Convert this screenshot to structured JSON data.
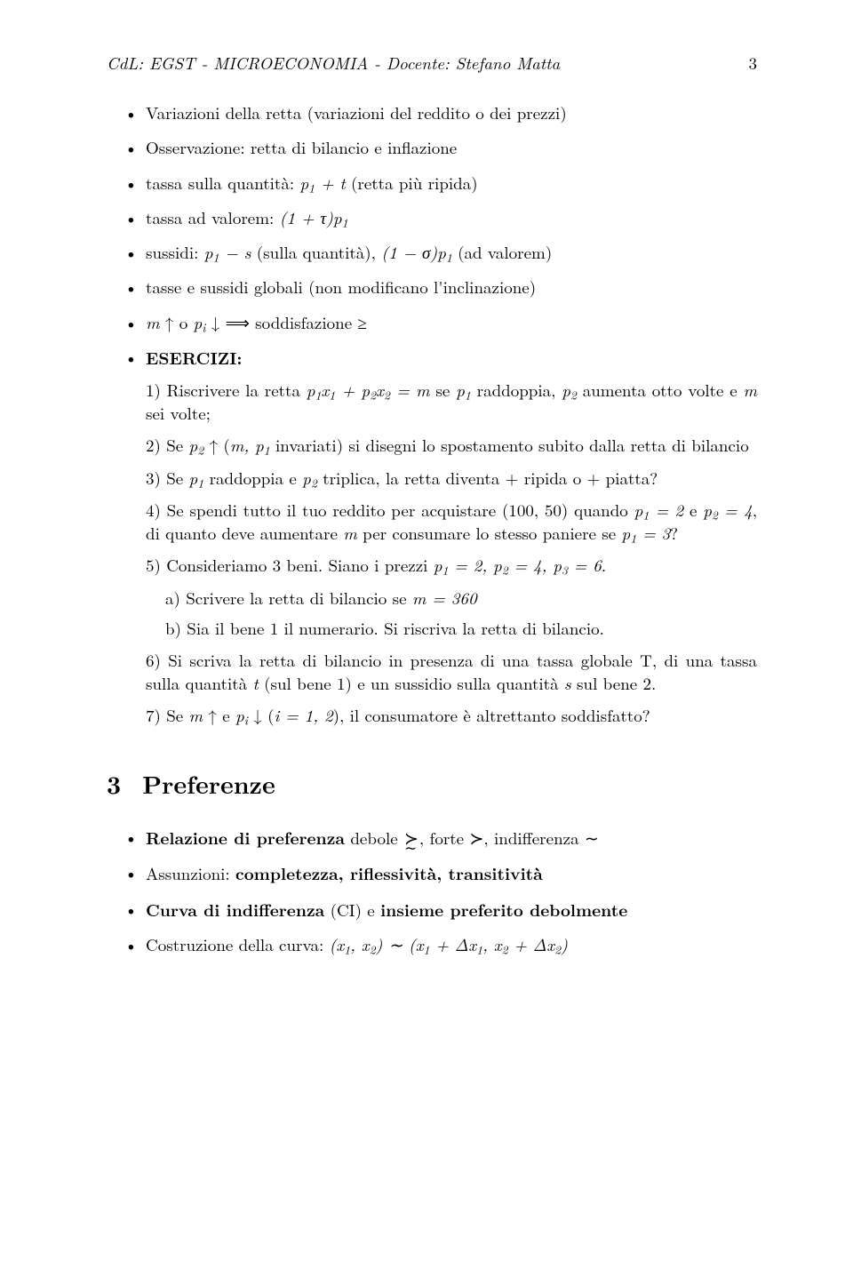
{
  "header": {
    "left": "CdL: EGST - MICROECONOMIA - Docente: Stefano Matta",
    "pagenum": "3"
  },
  "bullets": {
    "b1": "Variazioni della retta (variazioni del reddito o dei prezzi)",
    "b2": "Osservazione: retta di bilancio e inflazione",
    "b3_pre": "tassa sulla quantità: ",
    "b3_math": "p₁ + t",
    "b3_post": " (retta più ripida)",
    "b4_pre": "tassa ad valorem: ",
    "b4_math": "(1 + τ)p₁",
    "b5_pre": "sussidi: ",
    "b5_math1": "p₁ − s",
    "b5_mid": " (sulla quantità), ",
    "b5_math2": "(1 − σ)p₁",
    "b5_post": " (ad valorem)",
    "b6": "tasse e sussidi globali (non modificano l'inclinazione)",
    "b7_pre": "m ↑ o pᵢ ↓ ",
    "b7_arrow": "⟹",
    "b7_post": " soddisfazione ≥",
    "b8": "ESERCIZI:"
  },
  "ex": {
    "e1_a": "1) Riscrivere la retta ",
    "e1_m": "p₁x₁ + p₂x₂ = m",
    "e1_b": " se ",
    "e1_c": "p₁",
    "e1_d": " raddoppia, ",
    "e1_e": "p₂",
    "e1_f": " aumenta otto volte e ",
    "e1_g": "m",
    "e1_h": " sei volte;",
    "e2_a": "2) Se ",
    "e2_b": "p₂ ↑",
    "e2_c": " (",
    "e2_d": "m, p₁",
    "e2_e": " invariati) si disegni lo spostamento subito dalla retta di bilancio",
    "e3_a": "3) Se ",
    "e3_b": "p₁",
    "e3_c": " raddoppia e ",
    "e3_d": "p₂",
    "e3_e": " triplica, la retta diventa + ripida o + piatta?",
    "e4_a": "4) Se spendi tutto il tuo reddito per acquistare (100, 50) quando ",
    "e4_b": "p₁ = 2",
    "e4_c": " e ",
    "e4_d": "p₂ = 4",
    "e4_e": ", di quanto deve aumentare ",
    "e4_f": "m",
    "e4_g": " per consumare lo stesso paniere se ",
    "e4_h": "p₁ = 3",
    "e4_i": "?",
    "e5_a": "5) Consideriamo 3 beni. Siano i prezzi ",
    "e5_b": "p₁ = 2, p₂ = 4, p₃ = 6",
    "e5_c": ".",
    "e5a_a": "a) Scrivere la retta di bilancio se ",
    "e5a_b": "m = 360",
    "e5b": "b) Sia il bene 1 il numerario. Si riscriva la retta di bilancio.",
    "e6_a": "6) Si scriva la retta di bilancio in presenza di una tassa globale T, di una tassa sulla quantità ",
    "e6_b": "t",
    "e6_c": " (sul bene 1) e un sussidio sulla quantità ",
    "e6_d": "s",
    "e6_e": " sul bene 2.",
    "e7_a": "7) Se ",
    "e7_b": "m ↑",
    "e7_c": " e ",
    "e7_d": "pᵢ ↓",
    "e7_e": " (",
    "e7_f": "i = 1, 2",
    "e7_g": "), il consumatore è altrettanto soddisfatto?"
  },
  "section": {
    "num": "3",
    "title": "Preferenze"
  },
  "pref": {
    "p1_a": "Relazione di preferenza",
    "p1_b": " debole ",
    "p1_c": ", forte ≻, indifferenza ∼",
    "p2_a": "Assunzioni: ",
    "p2_b": "completezza, riflessività, transitività",
    "p3_a": "Curva di indifferenza",
    "p3_b": " (CI) e ",
    "p3_c": "insieme preferito debolmente",
    "p4_a": "Costruzione della curva: ",
    "p4_b": "(x₁, x₂) ∼ (x₁ + Δx₁, x₂ + Δx₂)"
  }
}
